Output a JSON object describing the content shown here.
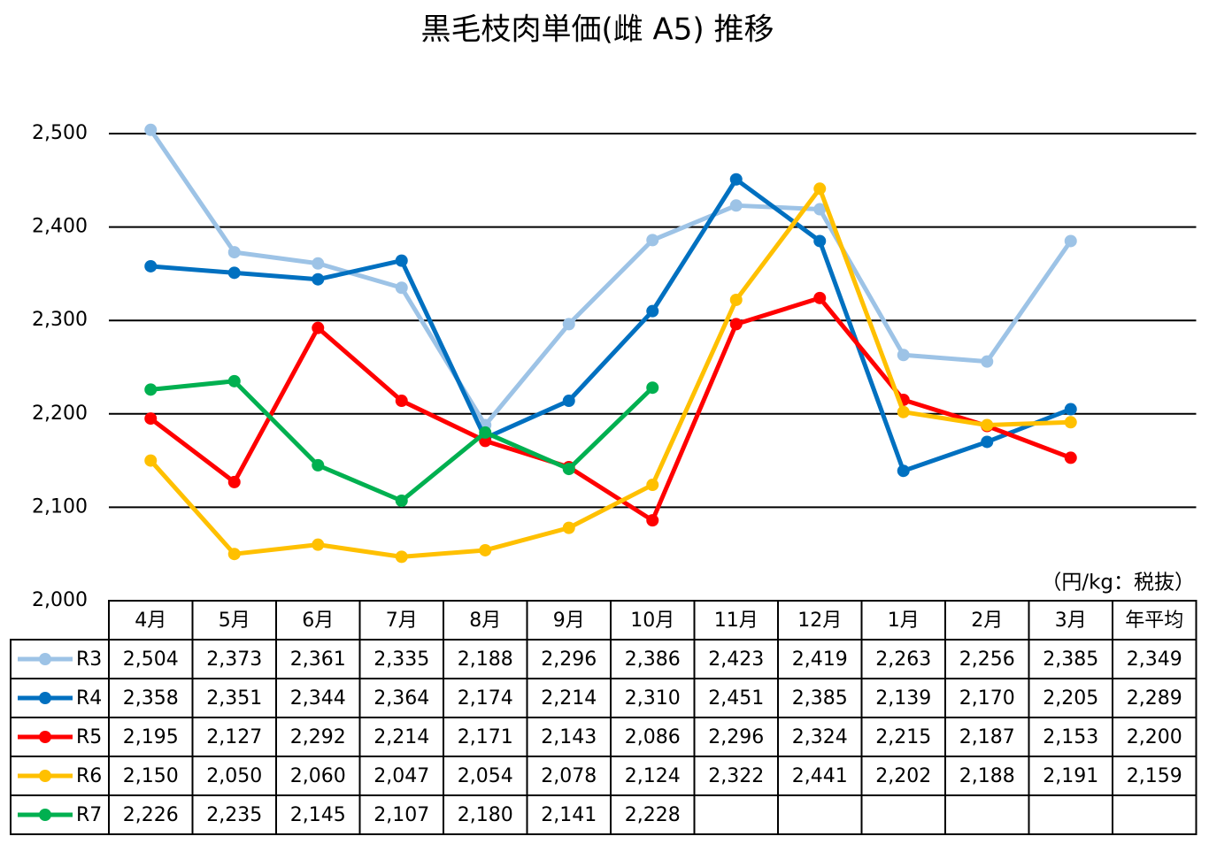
{
  "chart_data": {
    "type": "line",
    "title": "黒毛枝肉単価(雌 A5) 推移",
    "unit_note": "（円/kg：税抜）",
    "categories": [
      "4月",
      "5月",
      "6月",
      "7月",
      "8月",
      "9月",
      "10月",
      "11月",
      "12月",
      "1月",
      "2月",
      "3月"
    ],
    "average_header": "年平均",
    "ylim": [
      2000,
      2500
    ],
    "yticks": [
      {
        "value": 2000,
        "label": "2,000"
      },
      {
        "value": 2100,
        "label": "2,100"
      },
      {
        "value": 2200,
        "label": "2,200"
      },
      {
        "value": 2300,
        "label": "2,300"
      },
      {
        "value": 2400,
        "label": "2,400"
      },
      {
        "value": 2500,
        "label": "2,500"
      }
    ],
    "grid": true,
    "series": [
      {
        "name": "R3",
        "color": "#9dc3e6",
        "values": [
          2504,
          2373,
          2361,
          2335,
          2188,
          2296,
          2386,
          2423,
          2419,
          2263,
          2256,
          2385
        ],
        "value_labels": [
          "2,504",
          "2,373",
          "2,361",
          "2,335",
          "2,188",
          "2,296",
          "2,386",
          "2,423",
          "2,419",
          "2,263",
          "2,256",
          "2,385"
        ],
        "average": {
          "value": 2349,
          "label": "2,349"
        }
      },
      {
        "name": "R4",
        "color": "#0070c0",
        "values": [
          2358,
          2351,
          2344,
          2364,
          2174,
          2214,
          2310,
          2451,
          2385,
          2139,
          2170,
          2205
        ],
        "value_labels": [
          "2,358",
          "2,351",
          "2,344",
          "2,364",
          "2,174",
          "2,214",
          "2,310",
          "2,451",
          "2,385",
          "2,139",
          "2,170",
          "2,205"
        ],
        "average": {
          "value": 2289,
          "label": "2,289"
        }
      },
      {
        "name": "R5",
        "color": "#ff0000",
        "values": [
          2195,
          2127,
          2292,
          2214,
          2171,
          2143,
          2086,
          2296,
          2324,
          2215,
          2187,
          2153
        ],
        "value_labels": [
          "2,195",
          "2,127",
          "2,292",
          "2,214",
          "2,171",
          "2,143",
          "2,086",
          "2,296",
          "2,324",
          "2,215",
          "2,187",
          "2,153"
        ],
        "average": {
          "value": 2200,
          "label": "2,200"
        }
      },
      {
        "name": "R6",
        "color": "#ffc000",
        "values": [
          2150,
          2050,
          2060,
          2047,
          2054,
          2078,
          2124,
          2322,
          2441,
          2202,
          2188,
          2191
        ],
        "value_labels": [
          "2,150",
          "2,050",
          "2,060",
          "2,047",
          "2,054",
          "2,078",
          "2,124",
          "2,322",
          "2,441",
          "2,202",
          "2,188",
          "2,191"
        ],
        "average": {
          "value": 2159,
          "label": "2,159"
        }
      },
      {
        "name": "R7",
        "color": "#00b050",
        "values": [
          2226,
          2235,
          2145,
          2107,
          2180,
          2141,
          2228,
          null,
          null,
          null,
          null,
          null
        ],
        "value_labels": [
          "2,226",
          "2,235",
          "2,145",
          "2,107",
          "2,180",
          "2,141",
          "2,228",
          null,
          null,
          null,
          null,
          null
        ]
      }
    ]
  }
}
